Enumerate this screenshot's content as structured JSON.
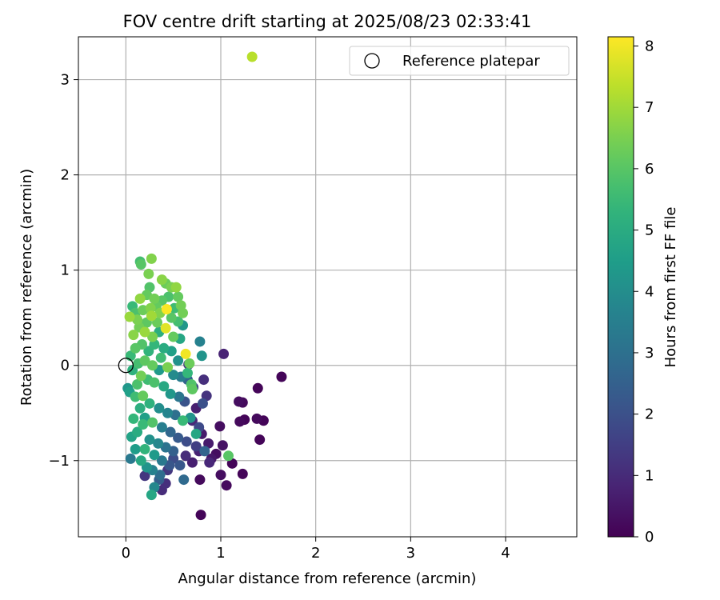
{
  "chart_data": {
    "type": "scatter",
    "title": "FOV centre drift starting at 2025/08/23 02:33:41",
    "xlabel": "Angular distance from reference (arcmin)",
    "ylabel": "Rotation from reference (arcmin)",
    "xlim": [
      -0.5,
      4.75
    ],
    "ylim": [
      -1.8,
      3.45
    ],
    "xticks": [
      0,
      1,
      2,
      3,
      4
    ],
    "yticks": [
      -1,
      0,
      1,
      2,
      3
    ],
    "xtick_labels": [
      "0",
      "1",
      "2",
      "3",
      "4"
    ],
    "ytick_labels": [
      "−1",
      "0",
      "1",
      "2",
      "3"
    ],
    "grid": true,
    "legend": {
      "placement": "top-right",
      "entries": [
        "Reference platepar"
      ]
    },
    "reference_point": {
      "x": 0,
      "y": 0,
      "label": "Reference platepar"
    },
    "colorbar": {
      "label": "Hours from first FF file",
      "colormap": "viridis",
      "range": [
        0,
        8.15
      ],
      "ticks": [
        0,
        1,
        2,
        3,
        4,
        5,
        6,
        7,
        8
      ],
      "tick_labels": [
        "0",
        "1",
        "2",
        "3",
        "4",
        "5",
        "6",
        "7",
        "8"
      ]
    },
    "points": [
      {
        "x": 1.64,
        "y": -0.12,
        "h": 0.1
      },
      {
        "x": 1.39,
        "y": -0.24,
        "h": 0.1
      },
      {
        "x": 1.45,
        "y": -0.58,
        "h": 0.1
      },
      {
        "x": 1.38,
        "y": -0.56,
        "h": 0.2
      },
      {
        "x": 1.41,
        "y": -0.78,
        "h": 0.1
      },
      {
        "x": 1.23,
        "y": -1.14,
        "h": 0.1
      },
      {
        "x": 1.12,
        "y": -1.03,
        "h": 0.1
      },
      {
        "x": 1.06,
        "y": -1.26,
        "h": 0.2
      },
      {
        "x": 1.0,
        "y": -1.15,
        "h": 0.3
      },
      {
        "x": 0.78,
        "y": -1.2,
        "h": 0.2
      },
      {
        "x": 0.79,
        "y": -1.57,
        "h": 0.1
      },
      {
        "x": 1.19,
        "y": -0.38,
        "h": 0.3
      },
      {
        "x": 1.23,
        "y": -0.39,
        "h": 0.2
      },
      {
        "x": 1.2,
        "y": -0.59,
        "h": 0.2
      },
      {
        "x": 1.25,
        "y": -0.57,
        "h": 0.1
      },
      {
        "x": 1.03,
        "y": 0.12,
        "h": 0.8
      },
      {
        "x": 0.99,
        "y": -0.64,
        "h": 0.3
      },
      {
        "x": 1.02,
        "y": -0.84,
        "h": 0.4
      },
      {
        "x": 0.95,
        "y": -0.93,
        "h": 0.3
      },
      {
        "x": 0.9,
        "y": -0.98,
        "h": 0.5
      },
      {
        "x": 0.85,
        "y": -0.32,
        "h": 1.2
      },
      {
        "x": 0.82,
        "y": -0.15,
        "h": 1.1
      },
      {
        "x": 0.8,
        "y": -0.72,
        "h": 0.6
      },
      {
        "x": 0.87,
        "y": -0.82,
        "h": 0.6
      },
      {
        "x": 0.74,
        "y": -0.45,
        "h": 0.7
      },
      {
        "x": 0.7,
        "y": -0.58,
        "h": 0.9
      },
      {
        "x": 0.77,
        "y": -0.9,
        "h": 0.8
      },
      {
        "x": 0.7,
        "y": -1.02,
        "h": 0.7
      },
      {
        "x": 0.63,
        "y": -0.95,
        "h": 1.0
      },
      {
        "x": 0.66,
        "y": 0.01,
        "h": 1.4
      },
      {
        "x": 0.71,
        "y": -0.23,
        "h": 1.5
      },
      {
        "x": 0.78,
        "y": 0.25,
        "h": 3.6
      },
      {
        "x": 0.8,
        "y": 0.1,
        "h": 4.2
      },
      {
        "x": 0.81,
        "y": -0.4,
        "h": 2.0
      },
      {
        "x": 0.77,
        "y": -0.65,
        "h": 1.8
      },
      {
        "x": 0.74,
        "y": -0.85,
        "h": 1.5
      },
      {
        "x": 0.61,
        "y": -1.2,
        "h": 2.8
      },
      {
        "x": 0.57,
        "y": -1.05,
        "h": 2.2
      },
      {
        "x": 0.5,
        "y": -0.98,
        "h": 1.9
      },
      {
        "x": 0.44,
        "y": -1.1,
        "h": 1.3
      },
      {
        "x": 0.42,
        "y": -1.24,
        "h": 1.1
      },
      {
        "x": 0.38,
        "y": -1.31,
        "h": 1.0
      },
      {
        "x": 0.35,
        "y": -1.2,
        "h": 2.4
      },
      {
        "x": 0.3,
        "y": -1.28,
        "h": 3.8
      },
      {
        "x": 0.27,
        "y": -1.36,
        "h": 4.8
      },
      {
        "x": 0.2,
        "y": -1.16,
        "h": 1.3
      },
      {
        "x": 0.22,
        "y": -1.07,
        "h": 4.2
      },
      {
        "x": 0.16,
        "y": -1.0,
        "h": 4.9
      },
      {
        "x": 0.05,
        "y": -0.98,
        "h": 3.3
      },
      {
        "x": 0.1,
        "y": -0.88,
        "h": 4.5
      },
      {
        "x": 0.06,
        "y": -0.75,
        "h": 4.7
      },
      {
        "x": 0.12,
        "y": -0.7,
        "h": 5.0
      },
      {
        "x": 0.18,
        "y": -0.62,
        "h": 5.5
      },
      {
        "x": 0.08,
        "y": -0.56,
        "h": 5.4
      },
      {
        "x": 0.15,
        "y": -0.45,
        "h": 5.1
      },
      {
        "x": 0.1,
        "y": -0.33,
        "h": 5.6
      },
      {
        "x": 0.04,
        "y": -0.28,
        "h": 4.6
      },
      {
        "x": 0.02,
        "y": -0.24,
        "h": 4.3
      },
      {
        "x": 0.12,
        "y": -0.2,
        "h": 5.8
      },
      {
        "x": 0.18,
        "y": -0.32,
        "h": 6.2
      },
      {
        "x": 0.23,
        "y": -0.15,
        "h": 5.6
      },
      {
        "x": 0.16,
        "y": -0.11,
        "h": 6.4
      },
      {
        "x": 0.07,
        "y": -0.05,
        "h": 5.2
      },
      {
        "x": 0.13,
        "y": 0.02,
        "h": 5.7
      },
      {
        "x": 0.2,
        "y": 0.05,
        "h": 6.1
      },
      {
        "x": 0.05,
        "y": 0.1,
        "h": 5.5
      },
      {
        "x": 0.1,
        "y": 0.18,
        "h": 6.0
      },
      {
        "x": 0.17,
        "y": 0.22,
        "h": 5.9
      },
      {
        "x": 0.24,
        "y": 0.15,
        "h": 5.3
      },
      {
        "x": 0.28,
        "y": 0.3,
        "h": 6.5
      },
      {
        "x": 0.08,
        "y": 0.32,
        "h": 6.7
      },
      {
        "x": 0.14,
        "y": 0.4,
        "h": 6.4
      },
      {
        "x": 0.22,
        "y": 0.45,
        "h": 6.1
      },
      {
        "x": 0.04,
        "y": 0.51,
        "h": 6.9
      },
      {
        "x": 0.1,
        "y": 0.55,
        "h": 5.8
      },
      {
        "x": 0.18,
        "y": 0.58,
        "h": 6.3
      },
      {
        "x": 0.26,
        "y": 0.6,
        "h": 6.6
      },
      {
        "x": 0.07,
        "y": 0.62,
        "h": 5.5
      },
      {
        "x": 0.15,
        "y": 0.7,
        "h": 6.8
      },
      {
        "x": 0.22,
        "y": 0.74,
        "h": 6.2
      },
      {
        "x": 0.3,
        "y": 0.7,
        "h": 6.4
      },
      {
        "x": 0.25,
        "y": 0.82,
        "h": 5.9
      },
      {
        "x": 0.24,
        "y": 0.96,
        "h": 6.5
      },
      {
        "x": 0.16,
        "y": 1.06,
        "h": 6.0
      },
      {
        "x": 0.15,
        "y": 1.09,
        "h": 5.7
      },
      {
        "x": 0.27,
        "y": 1.12,
        "h": 6.6
      },
      {
        "x": 0.38,
        "y": 0.9,
        "h": 6.7
      },
      {
        "x": 0.42,
        "y": 0.86,
        "h": 6.3
      },
      {
        "x": 0.48,
        "y": 0.82,
        "h": 6.5
      },
      {
        "x": 0.53,
        "y": 0.82,
        "h": 6.8
      },
      {
        "x": 0.55,
        "y": 0.72,
        "h": 6.2
      },
      {
        "x": 0.58,
        "y": 0.63,
        "h": 6.4
      },
      {
        "x": 0.43,
        "y": 0.59,
        "h": 8.1
      },
      {
        "x": 0.36,
        "y": 0.55,
        "h": 6.6
      },
      {
        "x": 0.48,
        "y": 0.5,
        "h": 6.0
      },
      {
        "x": 0.55,
        "y": 0.46,
        "h": 5.7
      },
      {
        "x": 0.6,
        "y": 0.42,
        "h": 4.3
      },
      {
        "x": 0.42,
        "y": 0.39,
        "h": 7.8
      },
      {
        "x": 0.35,
        "y": 0.35,
        "h": 5.1
      },
      {
        "x": 0.5,
        "y": 0.3,
        "h": 6.2
      },
      {
        "x": 0.57,
        "y": 0.28,
        "h": 4.8
      },
      {
        "x": 0.3,
        "y": 0.22,
        "h": 5.4
      },
      {
        "x": 0.4,
        "y": 0.18,
        "h": 5.0
      },
      {
        "x": 0.48,
        "y": 0.15,
        "h": 4.6
      },
      {
        "x": 0.63,
        "y": 0.12,
        "h": 8.0
      },
      {
        "x": 0.55,
        "y": 0.05,
        "h": 4.1
      },
      {
        "x": 0.37,
        "y": 0.08,
        "h": 5.6
      },
      {
        "x": 0.28,
        "y": 0.0,
        "h": 6.2
      },
      {
        "x": 0.35,
        "y": -0.05,
        "h": 4.4
      },
      {
        "x": 0.44,
        "y": -0.02,
        "h": 6.5
      },
      {
        "x": 0.5,
        "y": -0.1,
        "h": 3.9
      },
      {
        "x": 0.58,
        "y": -0.12,
        "h": 3.4
      },
      {
        "x": 0.65,
        "y": -0.15,
        "h": 2.6
      },
      {
        "x": 0.7,
        "y": -0.25,
        "h": 6.1
      },
      {
        "x": 0.3,
        "y": -0.18,
        "h": 5.8
      },
      {
        "x": 0.4,
        "y": -0.22,
        "h": 4.9
      },
      {
        "x": 0.47,
        "y": -0.3,
        "h": 4.3
      },
      {
        "x": 0.56,
        "y": -0.33,
        "h": 3.2
      },
      {
        "x": 0.62,
        "y": -0.38,
        "h": 2.1
      },
      {
        "x": 0.25,
        "y": -0.4,
        "h": 5.2
      },
      {
        "x": 0.35,
        "y": -0.45,
        "h": 4.0
      },
      {
        "x": 0.44,
        "y": -0.5,
        "h": 3.7
      },
      {
        "x": 0.52,
        "y": -0.52,
        "h": 3.0
      },
      {
        "x": 0.6,
        "y": -0.58,
        "h": 5.5
      },
      {
        "x": 0.68,
        "y": -0.55,
        "h": 4.2
      },
      {
        "x": 0.2,
        "y": -0.55,
        "h": 4.6
      },
      {
        "x": 0.28,
        "y": -0.6,
        "h": 5.9
      },
      {
        "x": 0.38,
        "y": -0.65,
        "h": 3.5
      },
      {
        "x": 0.47,
        "y": -0.7,
        "h": 2.7
      },
      {
        "x": 0.55,
        "y": -0.76,
        "h": 2.3
      },
      {
        "x": 0.64,
        "y": -0.8,
        "h": 1.9
      },
      {
        "x": 0.74,
        "y": -0.72,
        "h": 4.8
      },
      {
        "x": 0.25,
        "y": -0.78,
        "h": 4.1
      },
      {
        "x": 0.34,
        "y": -0.82,
        "h": 3.8
      },
      {
        "x": 0.42,
        "y": -0.86,
        "h": 3.1
      },
      {
        "x": 0.5,
        "y": -0.9,
        "h": 2.5
      },
      {
        "x": 0.2,
        "y": -0.88,
        "h": 5.3
      },
      {
        "x": 0.3,
        "y": -0.94,
        "h": 4.4
      },
      {
        "x": 0.38,
        "y": -1.0,
        "h": 3.3
      },
      {
        "x": 0.46,
        "y": -1.05,
        "h": 2.2
      },
      {
        "x": 0.28,
        "y": -1.1,
        "h": 3.6
      },
      {
        "x": 0.36,
        "y": -1.15,
        "h": 2.9
      },
      {
        "x": 1.08,
        "y": -0.95,
        "h": 6.0
      },
      {
        "x": 0.83,
        "y": -0.9,
        "h": 2.6
      },
      {
        "x": 0.88,
        "y": -1.02,
        "h": 0.9
      },
      {
        "x": 0.67,
        "y": 0.02,
        "h": 6.3
      },
      {
        "x": 0.65,
        "y": -0.08,
        "h": 5.4
      },
      {
        "x": 0.69,
        "y": -0.2,
        "h": 5.9
      },
      {
        "x": 0.12,
        "y": 0.48,
        "h": 6.5
      },
      {
        "x": 0.2,
        "y": 0.35,
        "h": 6.9
      },
      {
        "x": 0.33,
        "y": 0.45,
        "h": 6.3
      },
      {
        "x": 0.27,
        "y": 0.52,
        "h": 7.0
      },
      {
        "x": 0.32,
        "y": 0.62,
        "h": 6.2
      },
      {
        "x": 0.38,
        "y": 0.68,
        "h": 6.0
      },
      {
        "x": 0.45,
        "y": 0.72,
        "h": 5.8
      },
      {
        "x": 0.51,
        "y": 0.6,
        "h": 5.6
      },
      {
        "x": 0.6,
        "y": 0.55,
        "h": 6.4
      },
      {
        "x": 1.33,
        "y": 3.24,
        "h": 7.3
      }
    ]
  }
}
